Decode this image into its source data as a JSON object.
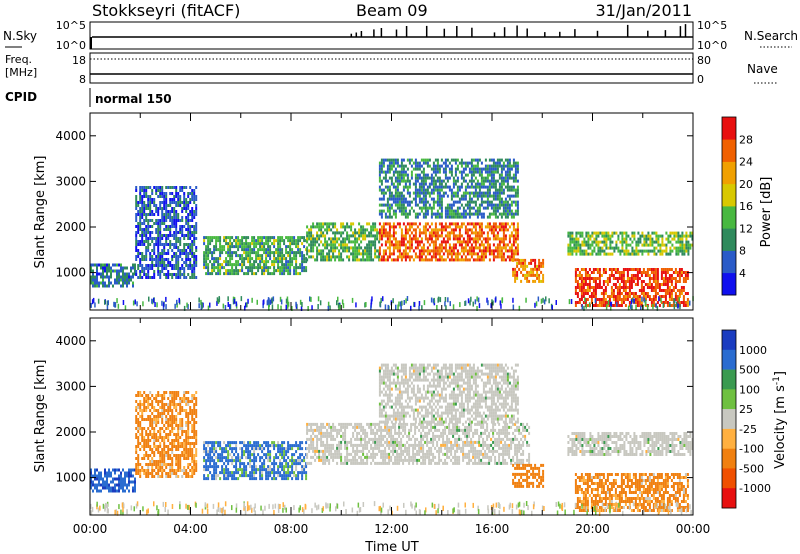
{
  "header": {
    "station": "Stokkseyri (fitACF)",
    "beam": "Beam 09",
    "date": "31/Jan/2011"
  },
  "top_panels": {
    "nsky_label": "N.Sky",
    "nsky_top_tick": "10^5",
    "nsky_bottom_tick": "10^0",
    "nsearch_label": "N.Search",
    "nsearch_top_tick": "10^5",
    "nsearch_bottom_tick": "10^0",
    "freq_label_1": "Freq.",
    "freq_label_2": "[MHz]",
    "freq_top_tick": "18",
    "freq_bottom_tick": "8",
    "nave_label": "Nave",
    "nave_top_tick": "80",
    "nave_bottom_tick": "0",
    "cpid_label": "CPID",
    "cpid_value": "normal 150"
  },
  "colors": {
    "power": [
      "#1010ee",
      "#2a5bc8",
      "#2f8a5c",
      "#48b840",
      "#d8c800",
      "#f0a000",
      "#f06000",
      "#e81010"
    ],
    "velocity": [
      "#1a3cc0",
      "#2a6cd0",
      "#3a9a50",
      "#6fc040",
      "#c8c8c0",
      "#ffb040",
      "#f08010",
      "#f05000",
      "#e81010"
    ]
  },
  "chart_data": [
    {
      "type": "heatmap",
      "title": "Power",
      "xlabel": "",
      "ylabel": "Slant Range [km]",
      "xlim": [
        "00:00",
        "00:00"
      ],
      "ylim": [
        180,
        4500
      ],
      "x_ticks": [
        "00:00",
        "04:00",
        "08:00",
        "12:00",
        "16:00",
        "20:00",
        "00:00"
      ],
      "y_ticks": [
        "1000",
        "2000",
        "3000",
        "4000"
      ],
      "colorbar": {
        "label": "Power [dB]",
        "ticks": [
          "4",
          "8",
          "12",
          "16",
          "20",
          "24",
          "28"
        ],
        "range": [
          0,
          32
        ]
      },
      "regions": [
        {
          "t_start": 0.0,
          "t_end": 1.8,
          "range_min": 700,
          "range_max": 1200,
          "value": 8
        },
        {
          "t_start": 1.8,
          "t_end": 4.2,
          "range_min": 900,
          "range_max": 2900,
          "value": 6
        },
        {
          "t_start": 4.5,
          "t_end": 8.6,
          "range_min": 1000,
          "range_max": 1800,
          "value": 12
        },
        {
          "t_start": 8.6,
          "t_end": 11.5,
          "range_min": 1300,
          "range_max": 2100,
          "value": 13
        },
        {
          "t_start": 11.5,
          "t_end": 17.0,
          "range_min": 1300,
          "range_max": 2100,
          "value": 26
        },
        {
          "t_start": 11.5,
          "t_end": 17.0,
          "range_min": 2200,
          "range_max": 3500,
          "value": 9
        },
        {
          "t_start": 16.8,
          "t_end": 18.0,
          "range_min": 800,
          "range_max": 1300,
          "value": 24
        },
        {
          "t_start": 19.0,
          "t_end": 24.0,
          "range_min": 1400,
          "range_max": 1900,
          "value": 14
        },
        {
          "t_start": 19.3,
          "t_end": 23.8,
          "range_min": 300,
          "range_max": 1100,
          "value": 28
        }
      ]
    },
    {
      "type": "heatmap",
      "title": "Velocity",
      "xlabel": "Time UT",
      "ylabel": "Slant Range [km]",
      "xlim": [
        "00:00",
        "00:00"
      ],
      "ylim": [
        180,
        4500
      ],
      "x_ticks": [
        "00:00",
        "04:00",
        "08:00",
        "12:00",
        "16:00",
        "20:00",
        "00:00"
      ],
      "y_ticks": [
        "1000",
        "2000",
        "3000",
        "4000"
      ],
      "colorbar": {
        "label": "Velocity [m s^-1]",
        "ticks": [
          "1000",
          "500",
          "100",
          "25",
          "-25",
          "-100",
          "-500",
          "-1000"
        ]
      },
      "regions": [
        {
          "t_start": 0.0,
          "t_end": 1.8,
          "range_min": 700,
          "range_max": 1200,
          "value": 400
        },
        {
          "t_start": 1.8,
          "t_end": 4.2,
          "range_min": 1000,
          "range_max": 2900,
          "value": -200
        },
        {
          "t_start": 4.5,
          "t_end": 8.6,
          "range_min": 1000,
          "range_max": 1800,
          "value": 200
        },
        {
          "t_start": 8.6,
          "t_end": 17.5,
          "range_min": 1300,
          "range_max": 2200,
          "value": 0
        },
        {
          "t_start": 11.5,
          "t_end": 17.0,
          "range_min": 2200,
          "range_max": 3500,
          "value": 0
        },
        {
          "t_start": 16.8,
          "t_end": 18.0,
          "range_min": 800,
          "range_max": 1300,
          "value": -300
        },
        {
          "t_start": 19.0,
          "t_end": 24.0,
          "range_min": 1500,
          "range_max": 2000,
          "value": 0
        },
        {
          "t_start": 19.3,
          "t_end": 23.8,
          "range_min": 300,
          "range_max": 1100,
          "value": -200
        }
      ]
    }
  ]
}
